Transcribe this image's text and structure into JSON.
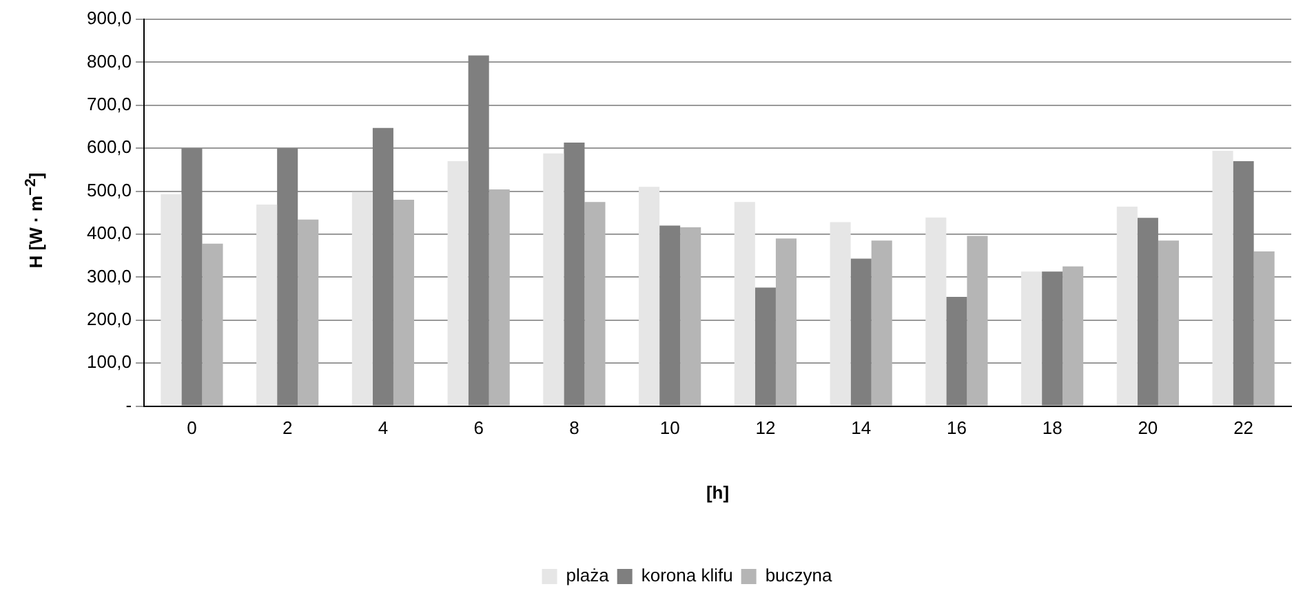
{
  "chart_data": {
    "type": "bar",
    "xlabel": "[h]",
    "ylabel": "H [W · m$^{−2}$]",
    "categories": [
      "0",
      "2",
      "4",
      "6",
      "8",
      "10",
      "12",
      "14",
      "16",
      "18",
      "20",
      "22"
    ],
    "series": [
      {
        "name": "plaża",
        "color": "#e6e6e6",
        "values": [
          493,
          469,
          498,
          570,
          588,
          510,
          475,
          428,
          439,
          313,
          464,
          594
        ]
      },
      {
        "name": "korona klifu",
        "color": "#7f7f7f",
        "values": [
          600,
          600,
          647,
          816,
          613,
          420,
          276,
          343,
          254,
          313,
          438,
          570
        ]
      },
      {
        "name": "buczyna",
        "color": "#b5b5b5",
        "values": [
          378,
          434,
          480,
          504,
          475,
          416,
          390,
          385,
          396,
          325,
          385,
          360
        ]
      }
    ],
    "ylim": [
      0,
      900
    ],
    "yticks": [
      {
        "value": 0,
        "label": "-"
      },
      {
        "value": 100,
        "label": "100,0"
      },
      {
        "value": 200,
        "label": "200,0"
      },
      {
        "value": 300,
        "label": "300,0"
      },
      {
        "value": 400,
        "label": "400,0"
      },
      {
        "value": 500,
        "label": "500,0"
      },
      {
        "value": 600,
        "label": "600,0"
      },
      {
        "value": 700,
        "label": "700,0"
      },
      {
        "value": 800,
        "label": "800,0"
      },
      {
        "value": 900,
        "label": "900,0"
      }
    ],
    "grid": "y",
    "legend": "bottom"
  }
}
